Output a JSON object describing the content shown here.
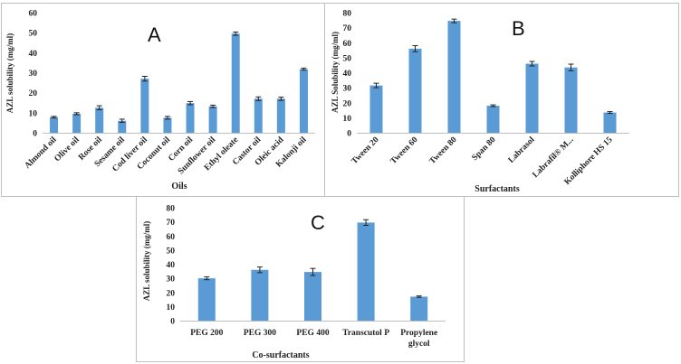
{
  "chart_data": [
    {
      "type": "bar",
      "panel": "A",
      "categories": [
        "Almond oil",
        "Olive oil",
        "Rose oil",
        "Sesame oil",
        "Cod liver oil",
        "Coconut oil",
        "Corn oil",
        "Sunflower oil",
        "Ethyl oleate",
        "Castor oil",
        "Oleic acid",
        "Kalonji oil"
      ],
      "values": [
        7.8,
        9.5,
        12.5,
        6,
        27,
        7.5,
        14.8,
        13.2,
        49.5,
        17,
        17,
        31.8
      ],
      "errors": [
        0.4,
        0.5,
        1.0,
        0.8,
        1.2,
        0.7,
        0.8,
        0.6,
        0.8,
        0.9,
        0.8,
        0.5
      ],
      "xlabel": "Oils",
      "ylabel": "AZL solubility (mg/ml)",
      "ylim": [
        0,
        60
      ],
      "yticks": [
        0,
        10,
        20,
        30,
        40,
        50,
        60
      ]
    },
    {
      "type": "bar",
      "panel": "B",
      "categories": [
        "Tween 20",
        "Tween 60",
        "Tween 80",
        "Span 80",
        "Labrasol",
        "Labrafil® M...",
        "Kolliphore HS 15"
      ],
      "values": [
        31.5,
        56,
        74.5,
        18,
        46,
        43.5,
        13.5
      ],
      "errors": [
        1.5,
        2.0,
        1.2,
        0.6,
        1.5,
        2.2,
        0.6
      ],
      "xlabel": "Surfactants",
      "ylabel": "AZL Solubility (mg/ml)",
      "ylim": [
        0,
        80
      ],
      "yticks": [
        0,
        10,
        20,
        30,
        40,
        50,
        60,
        70,
        80
      ]
    },
    {
      "type": "bar",
      "panel": "C",
      "categories": [
        "PEG 200",
        "PEG 300",
        "PEG 400",
        "Transcutol P",
        "Propylene glycol"
      ],
      "category_lines": [
        [
          "PEG 200"
        ],
        [
          "PEG 300"
        ],
        [
          "PEG 400"
        ],
        [
          "Transcutol P"
        ],
        [
          "Propylene",
          "glycol"
        ]
      ],
      "values": [
        30,
        36,
        34.5,
        69.5,
        17
      ],
      "errors": [
        1.0,
        2.0,
        2.5,
        2.0,
        0.5
      ],
      "xlabel": "Co-surfactants",
      "ylabel": "AZL solubility (mg/ml)",
      "ylim": [
        0,
        80
      ],
      "yticks": [
        0,
        10,
        20,
        30,
        40,
        50,
        60,
        70,
        80
      ]
    }
  ]
}
